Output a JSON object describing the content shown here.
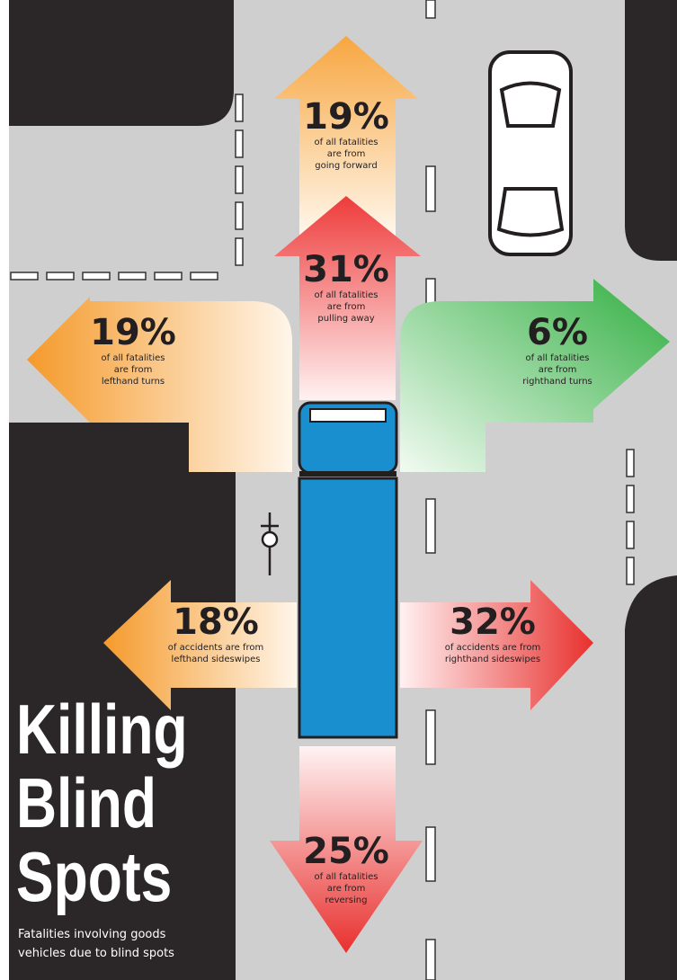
{
  "title": [
    "Killing",
    "Blind",
    "Spots"
  ],
  "subtitle": [
    "Fatalities involving goods",
    "vehicles due to blind spots"
  ],
  "callouts": [
    {
      "label": "19%",
      "caption": [
        "of all fatalities",
        "are from",
        "going forward"
      ]
    },
    {
      "label": "31%",
      "caption": [
        "of all fatalities",
        "are from",
        "pulling away"
      ]
    },
    {
      "label": "19%",
      "caption": [
        "of all fatalities",
        "are from",
        "lefthand turns"
      ]
    },
    {
      "label": "6%",
      "caption": [
        "of all fatalities",
        "are from",
        "righthand turns"
      ]
    },
    {
      "label": "18%",
      "caption": [
        "of accidents are from",
        "lefthand sideswipes"
      ]
    },
    {
      "label": "32%",
      "caption": [
        "of accidents are from",
        "righthand sideswipes"
      ]
    },
    {
      "label": "25%",
      "caption": [
        "of all fatalities",
        "are from",
        "reversing"
      ]
    }
  ]
}
